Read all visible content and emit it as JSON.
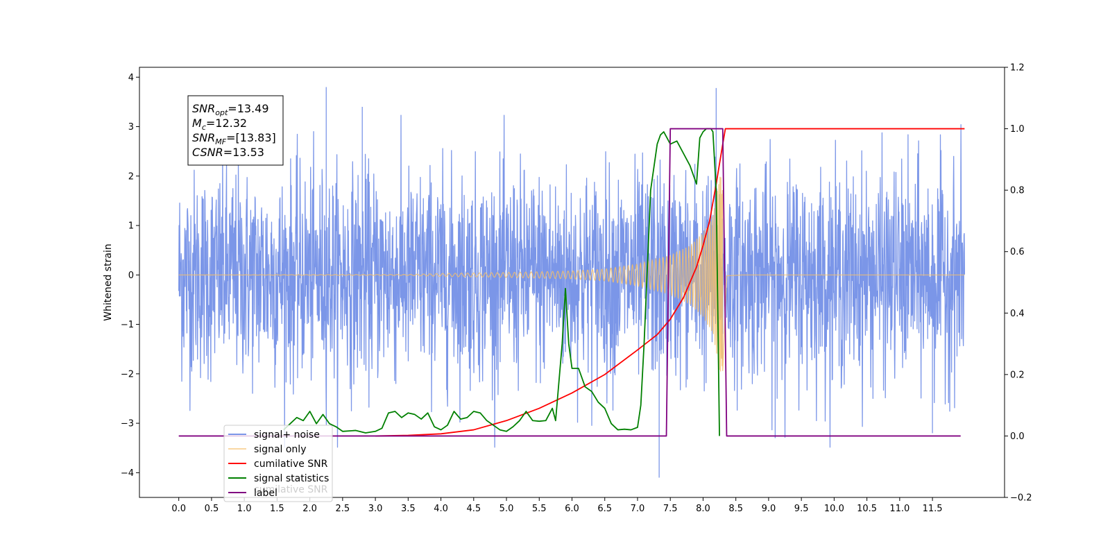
{
  "chart_data": {
    "type": "line",
    "xlabel": "",
    "ylabel": "Whitened strain",
    "xlim": [
      -0.6,
      12.6
    ],
    "ylim": [
      -4.5,
      4.2
    ],
    "ylim_right": [
      -0.2,
      1.2
    ],
    "x_ticks": [
      0.0,
      0.5,
      1.0,
      1.5,
      2.0,
      2.5,
      3.0,
      3.5,
      4.0,
      4.5,
      5.0,
      5.5,
      6.0,
      6.5,
      7.0,
      7.5,
      8.0,
      8.5,
      9.0,
      9.5,
      10.0,
      10.5,
      11.0,
      11.5
    ],
    "x_tick_labels": [
      "0.0",
      "0.5",
      "1.0",
      "1.5",
      "2.0",
      "2.5",
      "3.0",
      "3.5",
      "4.0",
      "4.5",
      "5.0",
      "5.5",
      "6.0",
      "6.5",
      "7.0",
      "7.5",
      "8.0",
      "8.5",
      "9.0",
      "9.5",
      "10.0",
      "10.5",
      "11.0",
      "11.5"
    ],
    "y_ticks_left": [
      -4,
      -3,
      -2,
      -1,
      0,
      1,
      2,
      3,
      4
    ],
    "y_tick_labels_left": [
      "−4",
      "−3",
      "−2",
      "−1",
      "0",
      "1",
      "2",
      "3",
      "4"
    ],
    "y_ticks_right": [
      -0.2,
      0.0,
      0.2,
      0.4,
      0.6,
      0.8,
      1.0,
      1.2
    ],
    "y_tick_labels_right": [
      "−0.2",
      "0.0",
      "0.2",
      "0.4",
      "0.6",
      "0.8",
      "1.0",
      "1.2"
    ],
    "grid": false,
    "legend_position": "lower-left",
    "info_box": {
      "position": "top-left",
      "lines": [
        {
          "base": "SNR",
          "sub": "opt",
          "value": "=13.49"
        },
        {
          "base": "M",
          "sub": "c",
          "value": "=12.32"
        },
        {
          "base": "SNR",
          "sub": "MF",
          "value": "=[13.83]"
        },
        {
          "base": "CSNR",
          "sub": "",
          "value": "=13.53"
        }
      ]
    },
    "series": [
      {
        "name": "signal+ noise",
        "color": "#7b96e8",
        "axis": "left",
        "style": "noise",
        "x_range": [
          0.0,
          11.99
        ],
        "typical_amplitude": 1.9,
        "max": 3.8,
        "min": -4.1,
        "spikes": [
          [
            2.25,
            3.8
          ],
          [
            8.2,
            3.78
          ],
          [
            7.33,
            -4.1
          ],
          [
            2.8,
            3.4
          ],
          [
            11.5,
            -3.2
          ],
          [
            9.1,
            -3.3
          ]
        ]
      },
      {
        "name": "signal only",
        "color": "#f5bf6b",
        "axis": "left",
        "style": "chirp",
        "x_range": [
          0.0,
          11.99
        ],
        "merger_time": 8.3,
        "envelope": [
          [
            0.0,
            0.0
          ],
          [
            3.5,
            0.01
          ],
          [
            4.0,
            0.03
          ],
          [
            5.0,
            0.05
          ],
          [
            6.0,
            0.08
          ],
          [
            6.5,
            0.12
          ],
          [
            7.0,
            0.22
          ],
          [
            7.5,
            0.4
          ],
          [
            7.8,
            0.6
          ],
          [
            8.0,
            0.85
          ],
          [
            8.15,
            1.2
          ],
          [
            8.3,
            2.3
          ],
          [
            8.36,
            0.02
          ],
          [
            8.6,
            0.0
          ]
        ]
      },
      {
        "name": "cumilative SNR",
        "color": "#ff0000",
        "axis": "right",
        "points": [
          [
            3.0,
            0.0
          ],
          [
            3.5,
            0.002
          ],
          [
            4.0,
            0.007
          ],
          [
            4.5,
            0.02
          ],
          [
            5.0,
            0.05
          ],
          [
            5.5,
            0.09
          ],
          [
            6.0,
            0.14
          ],
          [
            6.5,
            0.2
          ],
          [
            7.0,
            0.28
          ],
          [
            7.3,
            0.33
          ],
          [
            7.5,
            0.38
          ],
          [
            7.7,
            0.45
          ],
          [
            7.9,
            0.55
          ],
          [
            8.0,
            0.62
          ],
          [
            8.1,
            0.7
          ],
          [
            8.2,
            0.82
          ],
          [
            8.3,
            0.95
          ],
          [
            8.34,
            1.0
          ],
          [
            11.99,
            1.0
          ]
        ]
      },
      {
        "name": "signal statistics",
        "color": "#008000",
        "axis": "right",
        "points": [
          [
            1.6,
            0.02
          ],
          [
            1.8,
            0.06
          ],
          [
            1.9,
            0.05
          ],
          [
            2.0,
            0.08
          ],
          [
            2.1,
            0.04
          ],
          [
            2.2,
            0.07
          ],
          [
            2.3,
            0.04
          ],
          [
            2.4,
            0.03
          ],
          [
            2.5,
            0.015
          ],
          [
            2.7,
            0.018
          ],
          [
            2.85,
            0.01
          ],
          [
            3.0,
            0.015
          ],
          [
            3.1,
            0.025
          ],
          [
            3.2,
            0.075
          ],
          [
            3.3,
            0.08
          ],
          [
            3.4,
            0.06
          ],
          [
            3.5,
            0.075
          ],
          [
            3.6,
            0.07
          ],
          [
            3.7,
            0.055
          ],
          [
            3.8,
            0.075
          ],
          [
            3.9,
            0.03
          ],
          [
            4.0,
            0.02
          ],
          [
            4.1,
            0.035
          ],
          [
            4.2,
            0.08
          ],
          [
            4.3,
            0.055
          ],
          [
            4.4,
            0.06
          ],
          [
            4.5,
            0.08
          ],
          [
            4.6,
            0.075
          ],
          [
            4.7,
            0.05
          ],
          [
            4.8,
            0.035
          ],
          [
            4.9,
            0.02
          ],
          [
            5.0,
            0.015
          ],
          [
            5.1,
            0.03
          ],
          [
            5.2,
            0.05
          ],
          [
            5.3,
            0.08
          ],
          [
            5.4,
            0.05
          ],
          [
            5.5,
            0.048
          ],
          [
            5.6,
            0.05
          ],
          [
            5.7,
            0.09
          ],
          [
            5.75,
            0.05
          ],
          [
            5.85,
            0.3
          ],
          [
            5.9,
            0.48
          ],
          [
            5.95,
            0.3
          ],
          [
            6.0,
            0.22
          ],
          [
            6.05,
            0.22
          ],
          [
            6.1,
            0.22
          ],
          [
            6.2,
            0.16
          ],
          [
            6.3,
            0.145
          ],
          [
            6.4,
            0.11
          ],
          [
            6.5,
            0.09
          ],
          [
            6.6,
            0.04
          ],
          [
            6.7,
            0.02
          ],
          [
            6.8,
            0.022
          ],
          [
            6.9,
            0.02
          ],
          [
            7.0,
            0.028
          ],
          [
            7.05,
            0.1
          ],
          [
            7.1,
            0.3
          ],
          [
            7.2,
            0.8
          ],
          [
            7.3,
            0.95
          ],
          [
            7.35,
            0.98
          ],
          [
            7.4,
            0.99
          ],
          [
            7.45,
            0.97
          ],
          [
            7.5,
            0.95
          ],
          [
            7.6,
            0.96
          ],
          [
            7.7,
            0.92
          ],
          [
            7.8,
            0.88
          ],
          [
            7.9,
            0.82
          ],
          [
            7.95,
            0.97
          ],
          [
            8.0,
            0.99
          ],
          [
            8.05,
            1.0
          ],
          [
            8.12,
            1.0
          ],
          [
            8.15,
            0.99
          ],
          [
            8.2,
            0.8
          ],
          [
            8.25,
            0.0
          ]
        ]
      },
      {
        "name": "label",
        "color": "#800080",
        "axis": "right",
        "step": true,
        "points": [
          [
            0.0,
            0.0
          ],
          [
            7.44,
            0.0
          ],
          [
            7.5,
            1.0
          ],
          [
            8.3,
            1.0
          ],
          [
            8.36,
            0.0
          ],
          [
            11.93,
            0.0
          ]
        ]
      }
    ],
    "legend_entries": [
      "signal+ noise",
      "signal only",
      "cumilative SNR",
      "signal statistics",
      "label"
    ],
    "legend_hidden_overlap_text": "cumilative SNR"
  }
}
